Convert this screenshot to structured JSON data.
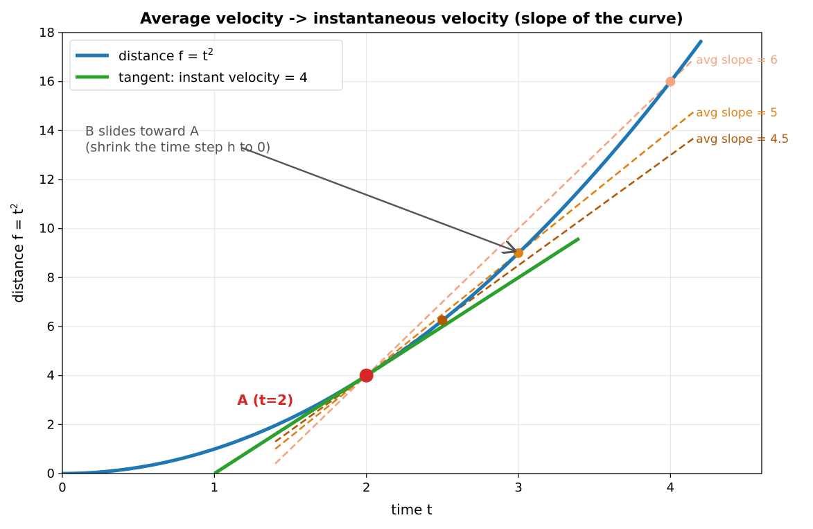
{
  "chart_data": {
    "type": "line",
    "title": "Average velocity  ->  instantaneous velocity  (slope of the curve)",
    "xlabel": "time  t",
    "ylabel_main": "distance  f = t",
    "ylabel_sup": "2",
    "xlim": [
      0,
      4.6
    ],
    "ylim": [
      0,
      18
    ],
    "x_ticks": [
      "0",
      "1",
      "2",
      "3",
      "4"
    ],
    "y_ticks": [
      "0",
      "2",
      "4",
      "6",
      "8",
      "10",
      "12",
      "14",
      "16",
      "18"
    ],
    "grid": true,
    "legend_position": "top-left",
    "legend": [
      {
        "label_main": "distance  f = t",
        "label_sup": "2",
        "color": "#1f77b4"
      },
      {
        "label_main": "tangent: instant velocity = 4",
        "label_sup": "",
        "color": "#2ca02c"
      }
    ],
    "curve": {
      "name": "distance  f = t²",
      "function": "t^2",
      "x_range": [
        0,
        4.2
      ],
      "color": "#1f77b4"
    },
    "tangent": {
      "name": "tangent: instant velocity = 4",
      "slope": 4,
      "through": [
        2,
        4
      ],
      "x_range": [
        1,
        3.4
      ],
      "color": "#2ca02c"
    },
    "point_A": {
      "x": 2,
      "y": 4,
      "label": "A  (t=2)",
      "color": "#d62728"
    },
    "secants": [
      {
        "label": "avg slope = 6",
        "slope": 6,
        "point_B": [
          4,
          16
        ],
        "x_range": [
          1.4,
          4.15
        ],
        "color": "#f4a582"
      },
      {
        "label": "avg slope = 5",
        "slope": 5,
        "point_B": [
          3,
          9
        ],
        "x_range": [
          1.4,
          4.15
        ],
        "color": "#e08214"
      },
      {
        "label": "avg slope = 4.5",
        "slope": 4.5,
        "point_B": [
          2.5,
          6.25
        ],
        "x_range": [
          1.4,
          4.15
        ],
        "color": "#b35806"
      }
    ],
    "annotation": {
      "lines": [
        "B slides toward A",
        "(shrink the time step h to 0)"
      ],
      "arrow_to": [
        3,
        9
      ],
      "color": "#555555"
    }
  }
}
